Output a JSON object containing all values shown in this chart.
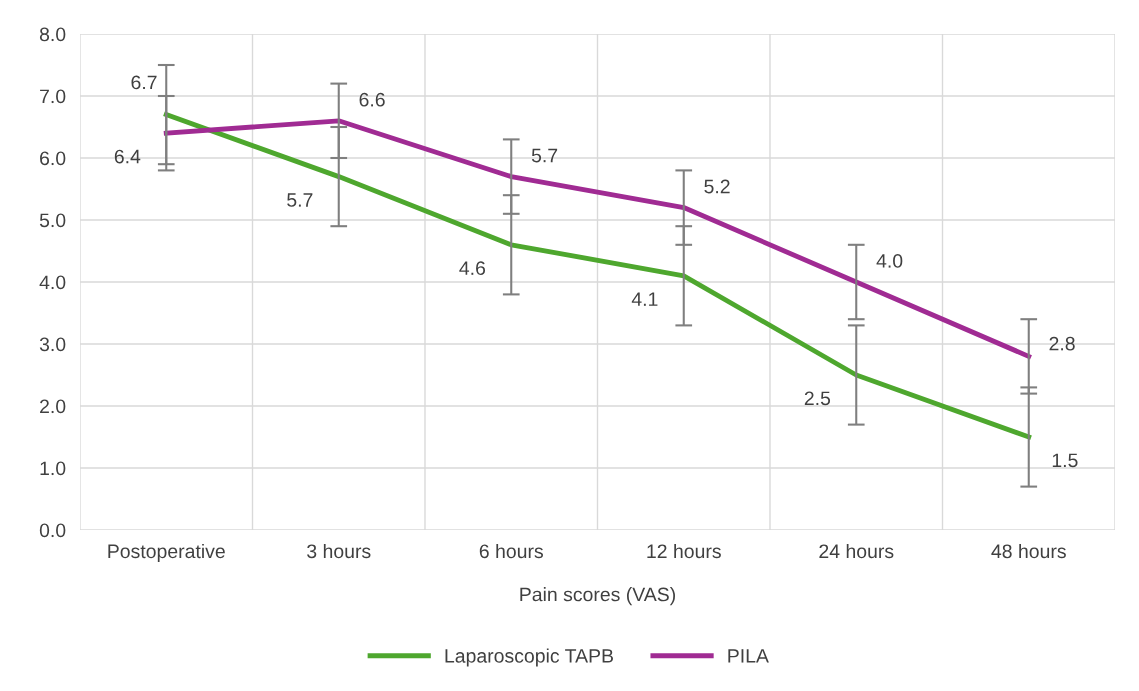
{
  "chart_data": {
    "type": "line",
    "xlabel": "Pain scores (VAS)",
    "categories": [
      "Postoperative",
      "3 hours",
      "6 hours",
      "12 hours",
      "24 hours",
      "48 hours"
    ],
    "series": [
      {
        "name": "Laparoscopic TAPB",
        "color": "#4ea72e",
        "values": [
          6.7,
          5.7,
          4.6,
          4.1,
          2.5,
          1.5
        ],
        "value_labels": [
          "6.7",
          "5.7",
          "4.6",
          "4.1",
          "2.5",
          "1.5"
        ],
        "errors": [
          0.8,
          0.8,
          0.8,
          0.8,
          0.8,
          0.8
        ]
      },
      {
        "name": "PILA",
        "color": "#a02b93",
        "values": [
          6.4,
          6.6,
          5.7,
          5.2,
          4.0,
          2.8
        ],
        "value_labels": [
          "6.4",
          "6.6",
          "5.7",
          "5.2",
          "4.0",
          "2.8"
        ],
        "errors": [
          0.6,
          0.6,
          0.6,
          0.6,
          0.6,
          0.6
        ]
      }
    ],
    "ylim": [
      0,
      8
    ],
    "yticks": [
      {
        "value": 0,
        "label": "0.0"
      },
      {
        "value": 1,
        "label": "1.0"
      },
      {
        "value": 2,
        "label": "2.0"
      },
      {
        "value": 3,
        "label": "3.0"
      },
      {
        "value": 4,
        "label": "4.0"
      },
      {
        "value": 5,
        "label": "5.0"
      },
      {
        "value": 6,
        "label": "6.0"
      },
      {
        "value": 7,
        "label": "7.0"
      },
      {
        "value": 8,
        "label": "8.0"
      }
    ],
    "grid": true,
    "legend": "bottom",
    "marker": "none",
    "line_style": "solid"
  }
}
